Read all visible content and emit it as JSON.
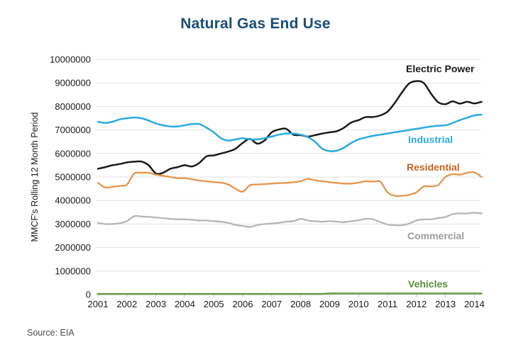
{
  "chart_data": {
    "type": "line",
    "title": "Natural Gas End Use",
    "ylabel": "MMCF's Rolling 12 Month Period",
    "xlabel": "",
    "source": "Source: EIA",
    "title_color": "#1b4e7a",
    "grid": "horizontal",
    "gridline_color": "#e2e2e2",
    "axis_text_color": "#1a1a1a",
    "legend_position": "inline-right",
    "ylim": [
      0,
      10000000
    ],
    "xlim": [
      2001,
      2014.35
    ],
    "y_ticks": [
      0,
      1000000,
      2000000,
      3000000,
      4000000,
      5000000,
      6000000,
      7000000,
      8000000,
      9000000,
      10000000
    ],
    "y_tick_labels": [
      "0",
      "1000000",
      "2000000",
      "3000000",
      "4000000",
      "5000000",
      "6000000",
      "7000000",
      "8000000",
      "9000000",
      "10000000"
    ],
    "x_ticks": [
      2001,
      2002,
      2003,
      2004,
      2005,
      2006,
      2007,
      2008,
      2009,
      2010,
      2011,
      2012,
      2013,
      2014
    ],
    "x": [
      2001,
      2001.25,
      2001.5,
      2001.75,
      2002,
      2002.25,
      2002.5,
      2002.75,
      2003,
      2003.25,
      2003.5,
      2003.75,
      2004,
      2004.25,
      2004.5,
      2004.75,
      2005,
      2005.25,
      2005.5,
      2005.75,
      2006,
      2006.25,
      2006.5,
      2006.75,
      2007,
      2007.25,
      2007.5,
      2007.75,
      2008,
      2008.25,
      2008.5,
      2008.75,
      2009,
      2009.25,
      2009.5,
      2009.75,
      2010,
      2010.25,
      2010.5,
      2010.75,
      2011,
      2011.25,
      2011.5,
      2011.75,
      2012,
      2012.25,
      2012.5,
      2012.75,
      2013,
      2013.25,
      2013.5,
      2013.75,
      2014,
      2014.25
    ],
    "series": [
      {
        "name": "Electric Power",
        "color": "#1a1a1a",
        "label_color": "#1a1a1a",
        "width": 2.5,
        "values": [
          5350000,
          5420000,
          5500000,
          5550000,
          5620000,
          5650000,
          5660000,
          5500000,
          5150000,
          5180000,
          5350000,
          5420000,
          5500000,
          5450000,
          5600000,
          5880000,
          5920000,
          6000000,
          6080000,
          6200000,
          6450000,
          6620000,
          6420000,
          6550000,
          6900000,
          7020000,
          7050000,
          6800000,
          6780000,
          6720000,
          6780000,
          6850000,
          6900000,
          6950000,
          7100000,
          7320000,
          7420000,
          7550000,
          7550000,
          7620000,
          7780000,
          8150000,
          8600000,
          8980000,
          9080000,
          9000000,
          8550000,
          8180000,
          8100000,
          8220000,
          8120000,
          8200000,
          8130000,
          8200000
        ]
      },
      {
        "name": "Industrial",
        "color": "#29abe2",
        "label_color": "#29abe2",
        "width": 2.5,
        "values": [
          7350000,
          7300000,
          7350000,
          7450000,
          7500000,
          7530000,
          7500000,
          7400000,
          7280000,
          7200000,
          7150000,
          7150000,
          7200000,
          7250000,
          7250000,
          7100000,
          6900000,
          6650000,
          6550000,
          6600000,
          6650000,
          6600000,
          6600000,
          6650000,
          6720000,
          6800000,
          6850000,
          6850000,
          6800000,
          6700000,
          6500000,
          6200000,
          6100000,
          6120000,
          6250000,
          6450000,
          6600000,
          6680000,
          6750000,
          6800000,
          6850000,
          6900000,
          6950000,
          7000000,
          7050000,
          7100000,
          7150000,
          7180000,
          7200000,
          7300000,
          7420000,
          7520000,
          7620000,
          7650000
        ]
      },
      {
        "name": "Residential",
        "color": "#e8944a",
        "label_color": "#c4661f",
        "width": 2.3,
        "values": [
          4750000,
          4550000,
          4580000,
          4620000,
          4680000,
          5150000,
          5180000,
          5180000,
          5100000,
          5050000,
          5000000,
          4950000,
          4950000,
          4900000,
          4850000,
          4820000,
          4780000,
          4760000,
          4680000,
          4500000,
          4380000,
          4650000,
          4680000,
          4700000,
          4720000,
          4740000,
          4750000,
          4780000,
          4820000,
          4920000,
          4860000,
          4820000,
          4780000,
          4750000,
          4720000,
          4720000,
          4760000,
          4820000,
          4800000,
          4800000,
          4350000,
          4200000,
          4200000,
          4240000,
          4350000,
          4600000,
          4600000,
          4660000,
          5000000,
          5120000,
          5100000,
          5180000,
          5200000,
          5000000
        ]
      },
      {
        "name": "Commercial",
        "color": "#b5b5b5",
        "label_color": "#9d9d9d",
        "width": 2.3,
        "values": [
          3050000,
          3000000,
          3000000,
          3030000,
          3120000,
          3330000,
          3320000,
          3300000,
          3280000,
          3250000,
          3220000,
          3200000,
          3200000,
          3180000,
          3150000,
          3150000,
          3120000,
          3100000,
          3050000,
          2960000,
          2920000,
          2880000,
          2950000,
          3000000,
          3020000,
          3050000,
          3100000,
          3120000,
          3220000,
          3150000,
          3120000,
          3100000,
          3120000,
          3100000,
          3080000,
          3120000,
          3160000,
          3220000,
          3200000,
          3080000,
          2980000,
          2950000,
          2950000,
          3020000,
          3150000,
          3200000,
          3200000,
          3250000,
          3300000,
          3420000,
          3450000,
          3450000,
          3480000,
          3450000
        ]
      },
      {
        "name": "Vehicles",
        "color": "#6b9c4d",
        "label_color": "#5a8f38",
        "width": 2.6,
        "values": [
          25000,
          25000,
          25000,
          25000,
          25000,
          25000,
          25000,
          25000,
          25000,
          25000,
          25000,
          25000,
          25000,
          25000,
          25000,
          25000,
          25000,
          25000,
          25000,
          25000,
          25000,
          25000,
          25000,
          25000,
          25000,
          25000,
          25000,
          25000,
          25000,
          25000,
          25000,
          25000,
          45000,
          45000,
          45000,
          45000,
          45000,
          45000,
          45000,
          45000,
          45000,
          45000,
          45000,
          45000,
          45000,
          45000,
          45000,
          45000,
          45000,
          45000,
          45000,
          45000,
          45000,
          45000
        ]
      }
    ]
  }
}
